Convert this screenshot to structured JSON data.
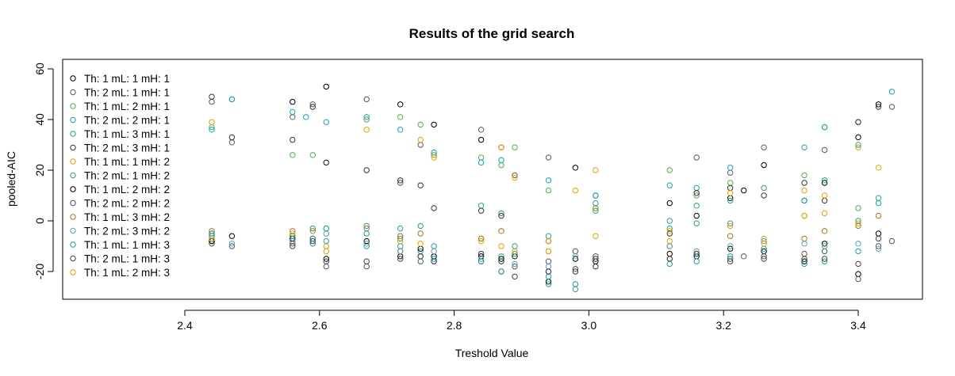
{
  "chart_data": {
    "type": "scatter",
    "title": "Results of the grid search",
    "xlabel": "Treshold Value",
    "ylabel": "pooled-AIC",
    "xlim": [
      2.4,
      3.5
    ],
    "ylim": [
      -30,
      60
    ],
    "x_ticks": [
      "2.4",
      "2.6",
      "2.8",
      "3.0",
      "3.2",
      "3.4"
    ],
    "y_ticks": [
      "-20",
      "0",
      "20",
      "40",
      "60"
    ],
    "grid": false,
    "legend_position": "top-left",
    "marker": "open-circle",
    "series": [
      {
        "name": "Th: 1 mL: 1 mH: 1",
        "color": "#000000",
        "x": [
          2.44,
          2.56,
          2.61,
          2.72,
          2.77,
          2.84,
          2.87,
          2.94,
          2.98,
          3.01,
          3.12,
          3.16,
          3.21,
          3.26,
          3.32,
          3.35,
          3.4,
          3.43
        ],
        "y": [
          -8,
          47,
          53,
          46,
          38,
          32,
          29,
          -20,
          21,
          -18,
          7,
          2,
          9,
          22,
          8,
          15,
          33,
          46
        ]
      },
      {
        "name": "Th: 2 mL: 1 mH: 1",
        "color": "#5a5a5a",
        "x": [
          2.44,
          2.47,
          2.56,
          2.59,
          2.61,
          2.67,
          2.72,
          2.75,
          2.84,
          2.89,
          2.94,
          3.01,
          3.16,
          3.21,
          3.26,
          3.35,
          3.4,
          3.45
        ],
        "y": [
          47,
          31,
          41,
          46,
          23,
          48,
          15,
          30,
          36,
          18,
          25,
          -18,
          25,
          19,
          29,
          28,
          39,
          45
        ]
      },
      {
        "name": "Th: 1 mL: 2 mH: 1",
        "color": "#4daf4a",
        "x": [
          2.44,
          2.47,
          2.56,
          2.59,
          2.67,
          2.72,
          2.75,
          2.77,
          2.84,
          2.87,
          2.89,
          2.94,
          3.12,
          3.16,
          3.21,
          3.32,
          3.35,
          3.4
        ],
        "y": [
          37,
          48,
          26,
          26,
          40,
          41,
          38,
          26,
          25,
          22,
          29,
          12,
          20,
          10,
          15,
          18,
          37,
          5
        ]
      },
      {
        "name": "Th: 2 mL: 2 mH: 1",
        "color": "#17a2b8",
        "x": [
          2.44,
          2.47,
          2.56,
          2.58,
          2.61,
          2.67,
          2.72,
          2.77,
          2.84,
          2.87,
          2.94,
          3.01,
          3.12,
          3.16,
          3.21,
          3.32,
          3.35,
          3.45
        ],
        "y": [
          36,
          48,
          43,
          41,
          39,
          41,
          36,
          27,
          23,
          24,
          16,
          10,
          14,
          13,
          21,
          29,
          37,
          51
        ]
      },
      {
        "name": "Th: 1 mL: 3 mH: 1",
        "color": "#20a386",
        "x": [
          2.44,
          2.56,
          2.59,
          2.61,
          2.67,
          2.72,
          2.75,
          2.84,
          2.87,
          2.94,
          3.01,
          3.12,
          3.16,
          3.21,
          3.32,
          3.4,
          3.43
        ],
        "y": [
          -5,
          -6,
          -3,
          -3,
          -2,
          -3,
          -2,
          6,
          3,
          -6,
          4,
          -3,
          -1,
          8,
          2,
          0,
          9
        ]
      },
      {
        "name": "Th: 2 mL: 3 mH: 1",
        "color": "#333333",
        "x": [
          2.44,
          2.47,
          2.56,
          2.59,
          2.61,
          2.67,
          2.72,
          2.75,
          2.77,
          2.84,
          2.87,
          2.94,
          2.98,
          3.12,
          3.16,
          3.21,
          3.26,
          3.32,
          3.35,
          3.4,
          3.43
        ],
        "y": [
          49,
          33,
          32,
          45,
          23,
          20,
          16,
          14,
          5,
          4,
          2,
          -8,
          -20,
          -5,
          11,
          13,
          10,
          15,
          8,
          39,
          45
        ]
      },
      {
        "name": "Th: 1 mL: 1 mH: 2",
        "color": "#e69f00",
        "x": [
          2.44,
          2.56,
          2.61,
          2.67,
          2.72,
          2.75,
          2.77,
          2.84,
          2.87,
          2.89,
          2.94,
          2.98,
          3.01,
          3.12,
          3.21,
          3.26,
          3.32,
          3.35,
          3.4
        ],
        "y": [
          39,
          -8,
          -10,
          36,
          -6,
          32,
          25,
          -7,
          29,
          17,
          -8,
          12,
          20,
          -8,
          11,
          -7,
          12,
          3,
          29
        ]
      },
      {
        "name": "Th: 2 mL: 1 mH: 2",
        "color": "#2aa198",
        "x": [
          2.44,
          2.56,
          2.59,
          2.61,
          2.67,
          2.72,
          2.75,
          2.77,
          2.84,
          2.87,
          2.89,
          2.94,
          2.98,
          3.01,
          3.12,
          3.16,
          3.21,
          3.26,
          3.32,
          3.35,
          3.4
        ],
        "y": [
          -7,
          -7,
          -9,
          -8,
          -10,
          -10,
          -12,
          -10,
          -13,
          -14,
          -10,
          -25,
          -27,
          7,
          0,
          6,
          -1,
          13,
          8,
          16,
          30
        ]
      },
      {
        "name": "Th: 1 mL: 2 mH: 2",
        "color": "#000000",
        "x": [
          2.44,
          2.47,
          2.56,
          2.59,
          2.61,
          2.67,
          2.72,
          2.75,
          2.77,
          2.84,
          2.87,
          2.89,
          2.94,
          2.98,
          3.01,
          3.12,
          3.16,
          3.21,
          3.23,
          3.26,
          3.32,
          3.35,
          3.4,
          3.43
        ],
        "y": [
          -8,
          -6,
          -7,
          -7,
          -15,
          -8,
          -14,
          -11,
          -14,
          -14,
          -15,
          -14,
          -24,
          -15,
          -16,
          -13,
          -14,
          -11,
          12,
          -12,
          -16,
          -9,
          -21,
          -5
        ]
      },
      {
        "name": "Th: 2 mL: 2 mH: 2",
        "color": "#555555",
        "x": [
          2.44,
          2.47,
          2.56,
          2.59,
          2.61,
          2.67,
          2.72,
          2.75,
          2.77,
          2.84,
          2.87,
          2.89,
          2.94,
          2.98,
          3.01,
          3.12,
          3.16,
          3.21,
          3.23,
          3.26,
          3.32,
          3.35,
          3.4,
          3.43,
          3.45
        ],
        "y": [
          -6,
          -10,
          -9,
          -9,
          -18,
          -18,
          -12,
          -16,
          -16,
          -16,
          -20,
          -18,
          -16,
          -12,
          -14,
          -15,
          -13,
          -15,
          -14,
          -14,
          -13,
          -12,
          -23,
          -10,
          -8
        ]
      },
      {
        "name": "Th: 1 mL: 3 mH: 2",
        "color": "#a6761d",
        "x": [
          2.44,
          2.56,
          2.59,
          2.67,
          2.72,
          2.75,
          2.84,
          2.87,
          2.94,
          3.01,
          3.12,
          3.21,
          3.32,
          3.35,
          3.4,
          3.43
        ],
        "y": [
          -4,
          -4,
          -4,
          -3,
          -6,
          -5,
          -7,
          -4,
          -12,
          5,
          -10,
          -6,
          -7,
          -4,
          -2,
          2
        ]
      },
      {
        "name": "Th: 2 mL: 3 mH: 2",
        "color": "#5aa0b4",
        "x": [
          2.44,
          2.47,
          2.56,
          2.59,
          2.61,
          2.67,
          2.72,
          2.75,
          2.77,
          2.84,
          2.87,
          2.89,
          2.94,
          2.98,
          3.01,
          3.12,
          3.16,
          3.21,
          3.26,
          3.32,
          3.35,
          3.4,
          3.43
        ],
        "y": [
          -6,
          -9,
          -8,
          -9,
          -5,
          -9,
          -12,
          -14,
          -12,
          -15,
          -16,
          -17,
          -18,
          -14,
          -15,
          -10,
          -12,
          -10,
          -8,
          -9,
          -10,
          -9,
          -11
        ]
      },
      {
        "name": "Th: 1 mL: 1 mH: 3",
        "color": "#1b9e9e",
        "x": [
          2.44,
          2.56,
          2.59,
          2.61,
          2.67,
          2.72,
          2.75,
          2.77,
          2.84,
          2.87,
          2.89,
          2.94,
          2.98,
          3.01,
          3.12,
          3.16,
          3.21,
          3.26,
          3.32,
          3.35,
          3.4,
          3.43
        ],
        "y": [
          -5,
          -6,
          -7,
          -3,
          -5,
          -7,
          -14,
          -15,
          -16,
          -20,
          -13,
          -22,
          -25,
          10,
          -17,
          -16,
          -14,
          -11,
          -17,
          -16,
          -12,
          7
        ]
      },
      {
        "name": "Th: 2 mL: 1 mH: 3",
        "color": "#444444",
        "x": [
          2.44,
          2.56,
          2.59,
          2.61,
          2.67,
          2.72,
          2.75,
          2.77,
          2.84,
          2.87,
          2.89,
          2.94,
          2.98,
          3.01,
          3.12,
          3.16,
          3.21,
          3.26,
          3.32,
          3.35,
          3.4,
          3.43
        ],
        "y": [
          -9,
          -10,
          -8,
          -16,
          -16,
          -15,
          -14,
          -16,
          -13,
          -16,
          -22,
          -20,
          -19,
          -15,
          -15,
          -13,
          -16,
          -15,
          -15,
          -15,
          -17,
          -7
        ]
      },
      {
        "name": "Th: 1 mL: 2 mH: 3",
        "color": "#e69f00",
        "x": [
          2.44,
          2.56,
          2.61,
          2.72,
          2.75,
          2.84,
          2.87,
          2.89,
          2.94,
          3.01,
          3.12,
          3.21,
          3.26,
          3.32,
          3.35,
          3.4,
          3.43
        ],
        "y": [
          -7,
          -5,
          -12,
          -8,
          -9,
          -8,
          -10,
          -12,
          -12,
          -6,
          -4,
          -2,
          -9,
          2,
          10,
          -1,
          21
        ]
      }
    ]
  }
}
